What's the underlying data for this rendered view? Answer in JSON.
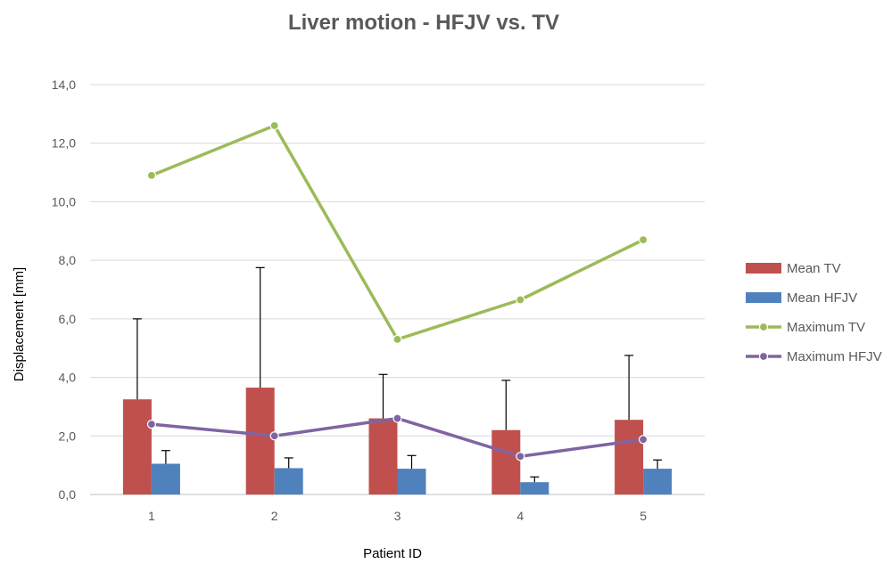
{
  "chart_data": {
    "type": "bar",
    "title": "Liver motion - HFJV vs. TV",
    "xlabel": "Patient ID",
    "ylabel": "Displacement [mm]",
    "categories": [
      "1",
      "2",
      "3",
      "4",
      "5"
    ],
    "y_ticks": [
      "0,0",
      "2,0",
      "4,0",
      "6,0",
      "8,0",
      "10,0",
      "12,0",
      "14,0"
    ],
    "ylim": [
      0,
      14
    ],
    "grid": true,
    "legend_position": "right",
    "series": [
      {
        "name": "Mean TV",
        "kind": "bar",
        "color": "#c0504d",
        "values": [
          3.25,
          3.65,
          2.6,
          2.2,
          2.55
        ],
        "error": [
          2.75,
          4.1,
          1.5,
          1.7,
          2.2
        ]
      },
      {
        "name": "Mean HFJV",
        "kind": "bar",
        "color": "#4f81bd",
        "values": [
          1.05,
          0.9,
          0.88,
          0.42,
          0.88
        ],
        "error": [
          0.45,
          0.35,
          0.45,
          0.18,
          0.3
        ]
      },
      {
        "name": "Maximum TV",
        "kind": "line",
        "color": "#9bbb59",
        "values": [
          10.9,
          12.6,
          5.3,
          6.65,
          8.7
        ]
      },
      {
        "name": "Maximum HFJV",
        "kind": "line",
        "color": "#8064a2",
        "values": [
          2.4,
          2.0,
          2.6,
          1.3,
          1.88
        ]
      }
    ]
  }
}
